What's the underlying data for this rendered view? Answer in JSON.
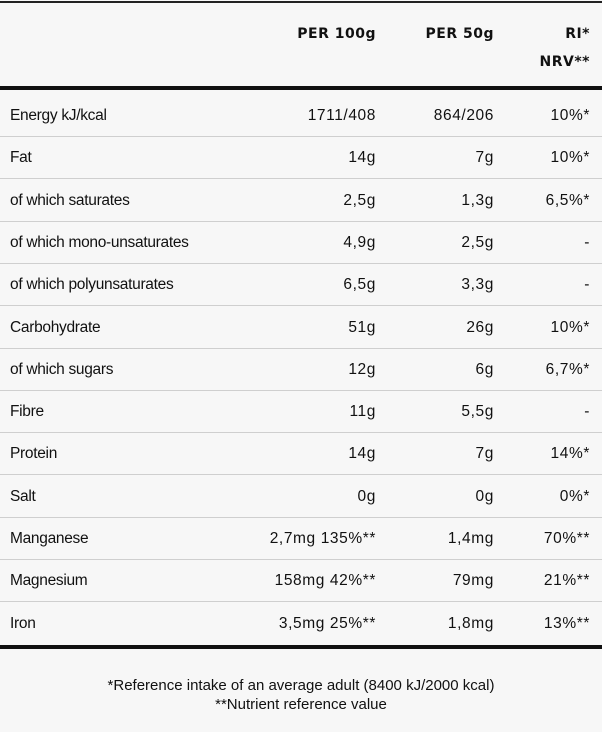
{
  "table": {
    "header": [
      "PER 100g",
      "PER 50g",
      "RI*",
      "NRV**"
    ],
    "rows": [
      [
        "Energy kJ/kcal",
        "1711/408",
        "864/206",
        "10%*"
      ],
      [
        "Fat",
        "14g",
        "7g",
        "10%*"
      ],
      [
        "of which saturates",
        "2,5g",
        "1,3g",
        "6,5%*"
      ],
      [
        "of which mono-unsaturates",
        "4,9g",
        "2,5g",
        "-"
      ],
      [
        "of which polyunsaturates",
        "6,5g",
        "3,3g",
        "-"
      ],
      [
        "Carbohydrate",
        "51g",
        "26g",
        "10%*"
      ],
      [
        "of which sugars",
        "12g",
        "6g",
        "6,7%*"
      ],
      [
        "Fibre",
        "11g",
        "5,5g",
        "-"
      ],
      [
        "Protein",
        "14g",
        "7g",
        "14%*"
      ],
      [
        "Salt",
        "0g",
        "0g",
        "0%*"
      ],
      [
        "Manganese",
        "2,7mg 135%**",
        "1,4mg",
        "70%**"
      ],
      [
        "Magnesium",
        "158mg 42%**",
        "79mg",
        "21%**"
      ],
      [
        "Iron",
        "3,5mg 25%**",
        "1,8mg",
        "13%**"
      ]
    ]
  },
  "footer": [
    "*Reference intake of an average adult (8400 kJ/2000 kcal)",
    "**Nutrient reference value"
  ]
}
